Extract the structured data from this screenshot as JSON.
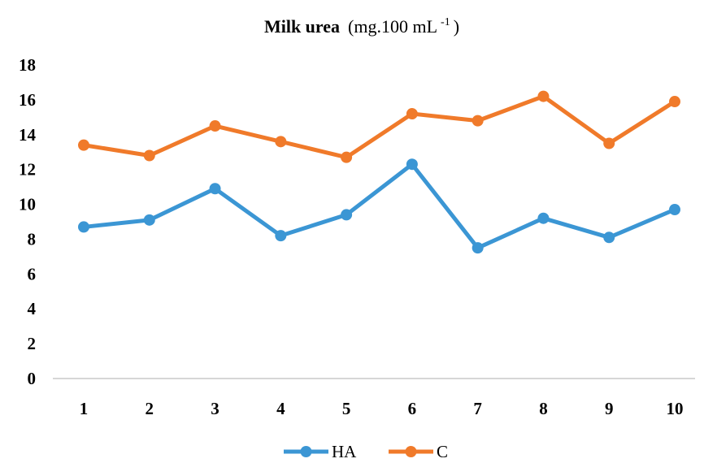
{
  "chart_data": {
    "type": "line",
    "title": {
      "bold": "Milk urea",
      "unit": "(mg.100 mL",
      "sup": "-1",
      "close": ")"
    },
    "x": [
      "1",
      "2",
      "3",
      "4",
      "5",
      "6",
      "7",
      "8",
      "9",
      "10"
    ],
    "yticks": [
      "0",
      "2",
      "4",
      "6",
      "8",
      "10",
      "12",
      "14",
      "16",
      "18"
    ],
    "ylim": [
      0,
      18
    ],
    "grid": false,
    "legend": "bottom-center",
    "series": [
      {
        "name": "HA",
        "color": "#3b96d4",
        "values": [
          8.7,
          9.1,
          10.9,
          8.2,
          9.4,
          12.3,
          7.5,
          9.2,
          8.1,
          9.7
        ]
      },
      {
        "name": "C",
        "color": "#f07a2a",
        "values": [
          13.4,
          12.8,
          14.5,
          13.6,
          12.7,
          15.2,
          14.8,
          16.2,
          13.5,
          15.9
        ]
      }
    ]
  }
}
